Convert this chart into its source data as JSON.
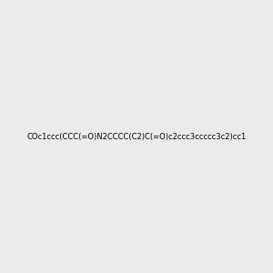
{
  "smiles": "COc1ccc(CCC(=O)N2CCCC(C2)C(=O)c2ccc3ccccc3c2)cc1",
  "bg_color": "#ebebeb",
  "bond_color": "#2d7d7d",
  "atom_colors": {
    "N": "#0000ff",
    "O": "#ff0000",
    "C": "#000000"
  },
  "figsize": [
    3.0,
    3.0
  ],
  "dpi": 100
}
